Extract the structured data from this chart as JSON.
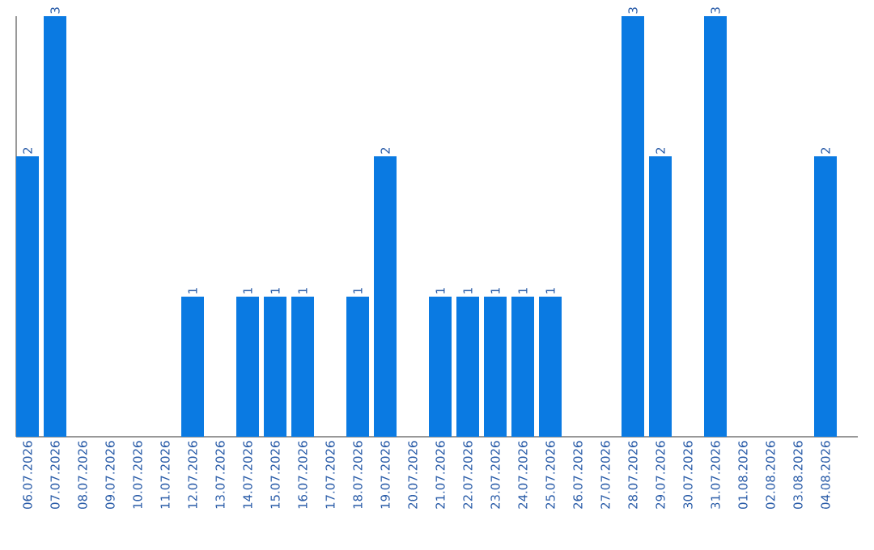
{
  "chart_data": {
    "type": "bar",
    "categories": [
      "06.07.2026",
      "07.07.2026",
      "08.07.2026",
      "09.07.2026",
      "10.07.2026",
      "11.07.2026",
      "12.07.2026",
      "13.07.2026",
      "14.07.2026",
      "15.07.2026",
      "16.07.2026",
      "17.07.2026",
      "18.07.2026",
      "19.07.2026",
      "20.07.2026",
      "21.07.2026",
      "22.07.2026",
      "23.07.2026",
      "24.07.2026",
      "25.07.2026",
      "26.07.2026",
      "27.07.2026",
      "28.07.2026",
      "29.07.2026",
      "30.07.2026",
      "31.07.2026",
      "01.08.2026",
      "02.08.2026",
      "03.08.2026",
      "04.08.2026"
    ],
    "values": [
      2,
      3,
      null,
      null,
      null,
      null,
      1,
      null,
      1,
      1,
      1,
      null,
      1,
      2,
      null,
      1,
      1,
      1,
      1,
      1,
      null,
      null,
      3,
      2,
      null,
      3,
      null,
      null,
      null,
      2
    ],
    "color": "#0a7ae2",
    "data_labels": true,
    "tick_labels": "x"
  }
}
